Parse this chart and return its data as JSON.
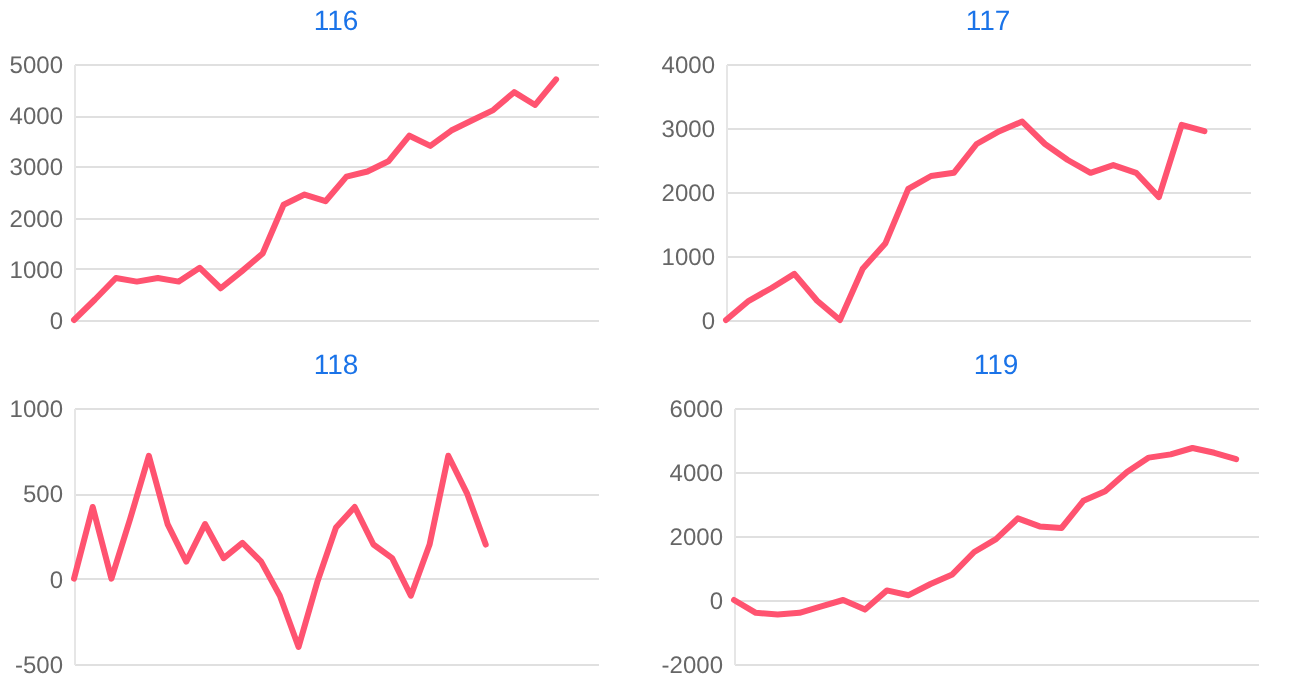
{
  "chart_data": [
    {
      "type": "line",
      "title": "116",
      "categories": [
        null,
        null,
        null,
        null,
        null,
        null,
        null,
        null,
        null,
        null,
        null,
        null,
        null,
        null,
        null,
        null,
        null,
        null,
        null,
        null,
        null,
        null,
        null,
        null,
        null,
        null
      ],
      "series": [
        {
          "color": "#ff5370",
          "values": [
            0,
            400,
            820,
            750,
            820,
            750,
            1020,
            620,
            950,
            1300,
            2250,
            2450,
            2320,
            2800,
            2900,
            3100,
            3600,
            3400,
            3700,
            3900,
            4100,
            4450,
            4200,
            4700,
            null,
            null
          ]
        }
      ],
      "ylim": [
        0,
        5000
      ],
      "yticks": [
        0,
        1000,
        2000,
        3000,
        4000,
        5000
      ],
      "grid": "y",
      "tick_labels": "y",
      "line_style": "solid"
    },
    {
      "type": "line",
      "title": "117",
      "categories": [
        null,
        null,
        null,
        null,
        null,
        null,
        null,
        null,
        null,
        null,
        null,
        null,
        null,
        null,
        null,
        null,
        null,
        null,
        null,
        null,
        null,
        null,
        null,
        null
      ],
      "series": [
        {
          "color": "#ff5370",
          "values": [
            0,
            300,
            500,
            720,
            300,
            0,
            800,
            1200,
            2050,
            2250,
            2300,
            2750,
            2950,
            3100,
            2750,
            2500,
            2300,
            2420,
            2300,
            1920,
            3050,
            2950,
            null,
            null
          ]
        }
      ],
      "ylim": [
        0,
        4000
      ],
      "yticks": [
        0,
        1000,
        2000,
        3000,
        4000
      ],
      "grid": "y",
      "tick_labels": "y",
      "line_style": "solid"
    },
    {
      "type": "line",
      "title": "118",
      "categories": [
        null,
        null,
        null,
        null,
        null,
        null,
        null,
        null,
        null,
        null,
        null,
        null,
        null,
        null,
        null,
        null,
        null,
        null,
        null,
        null,
        null,
        null,
        null,
        null,
        null,
        null,
        null,
        null,
        null
      ],
      "series": [
        {
          "color": "#ff5370",
          "values": [
            0,
            420,
            0,
            350,
            720,
            320,
            100,
            320,
            120,
            210,
            100,
            -100,
            -400,
            -20,
            300,
            420,
            200,
            120,
            -100,
            200,
            720,
            500,
            200,
            null,
            null,
            null,
            null,
            null,
            null
          ]
        }
      ],
      "ylim": [
        -500,
        1000
      ],
      "yticks": [
        -500,
        0,
        500,
        1000
      ],
      "grid": "y",
      "tick_labels": "y",
      "line_style": "solid"
    },
    {
      "type": "line",
      "title": "119",
      "categories": [
        null,
        null,
        null,
        null,
        null,
        null,
        null,
        null,
        null,
        null,
        null,
        null,
        null,
        null,
        null,
        null,
        null,
        null,
        null,
        null,
        null,
        null,
        null,
        null,
        null
      ],
      "series": [
        {
          "color": "#ff5370",
          "values": [
            0,
            -400,
            -450,
            -400,
            -200,
            0,
            -300,
            300,
            150,
            500,
            800,
            1500,
            1900,
            2550,
            2300,
            2250,
            3100,
            3400,
            4000,
            4450,
            4550,
            4750,
            4600,
            4400,
            null
          ]
        }
      ],
      "ylim": [
        -2000,
        6000
      ],
      "yticks": [
        -2000,
        0,
        2000,
        4000,
        6000
      ],
      "grid": "y",
      "tick_labels": "y",
      "line_style": "solid"
    }
  ]
}
